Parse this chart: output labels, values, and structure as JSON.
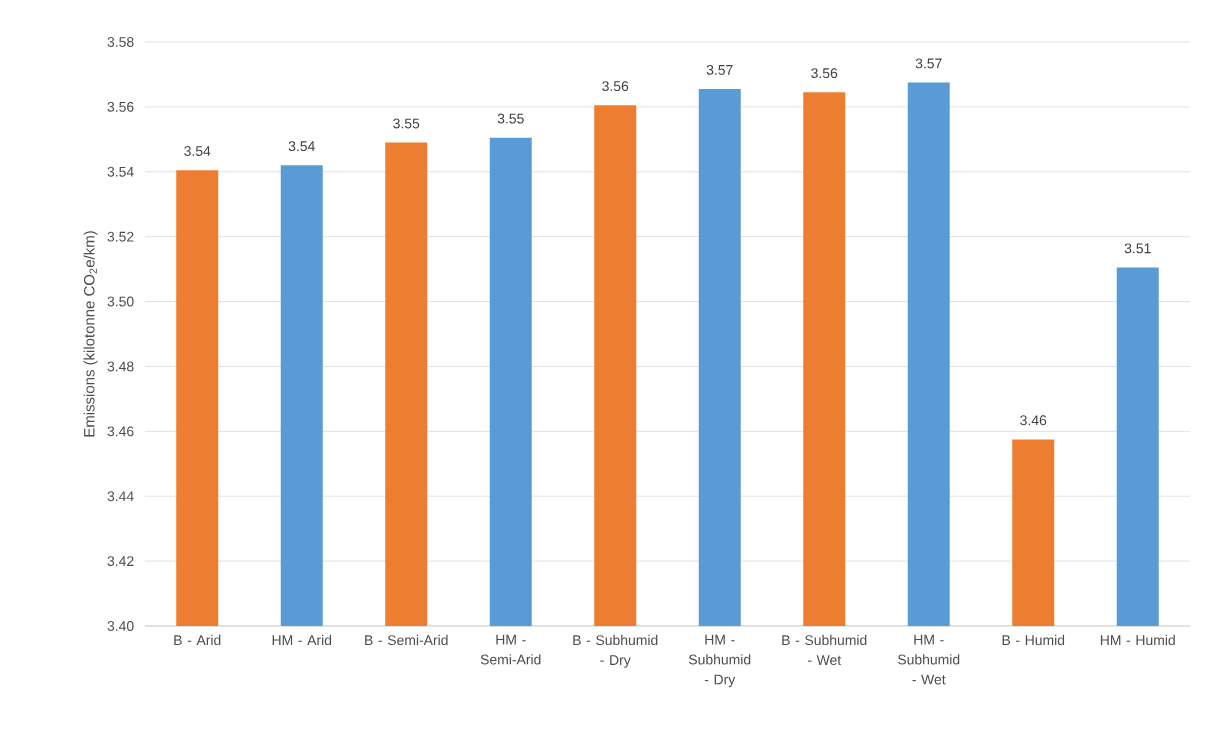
{
  "chart_data": {
    "type": "bar",
    "ylabel": "Emissions (kilotonne CO$_{2}$e/km)",
    "categories": [
      "B - Arid",
      "HM - Arid",
      "B - Semi-Arid",
      "HM - Semi-Arid",
      "B - Subhumid - Dry",
      "HM - Subhumid - Dry",
      "B - Subhumid - Wet",
      "HM - Subhumid - Wet",
      "B - Humid",
      "HM - Humid"
    ],
    "values": [
      3.5405,
      3.542,
      3.549,
      3.5505,
      3.5605,
      3.5655,
      3.5645,
      3.5675,
      3.4575,
      3.5105
    ],
    "value_labels": [
      "3.54",
      "3.54",
      "3.55",
      "3.55",
      "3.56",
      "3.57",
      "3.56",
      "3.57",
      "3.46",
      "3.51"
    ],
    "colors": [
      "#ed7d31",
      "#5b9bd5",
      "#ed7d31",
      "#5b9bd5",
      "#ed7d31",
      "#5b9bd5",
      "#ed7d31",
      "#5b9bd5",
      "#ed7d31",
      "#5b9bd5"
    ],
    "ylim": [
      3.4,
      3.58
    ],
    "yticks": [
      {
        "value": 3.4,
        "label": "3.40"
      },
      {
        "value": 3.42,
        "label": "3.42"
      },
      {
        "value": 3.44,
        "label": "3.44"
      },
      {
        "value": 3.46,
        "label": "3.46"
      },
      {
        "value": 3.48,
        "label": "3.48"
      },
      {
        "value": 3.5,
        "label": "3.50"
      },
      {
        "value": 3.52,
        "label": "3.52"
      },
      {
        "value": 3.54,
        "label": "3.54"
      },
      {
        "value": 3.56,
        "label": "3.56"
      },
      {
        "value": 3.58,
        "label": "3.58"
      }
    ],
    "grid": "y"
  }
}
